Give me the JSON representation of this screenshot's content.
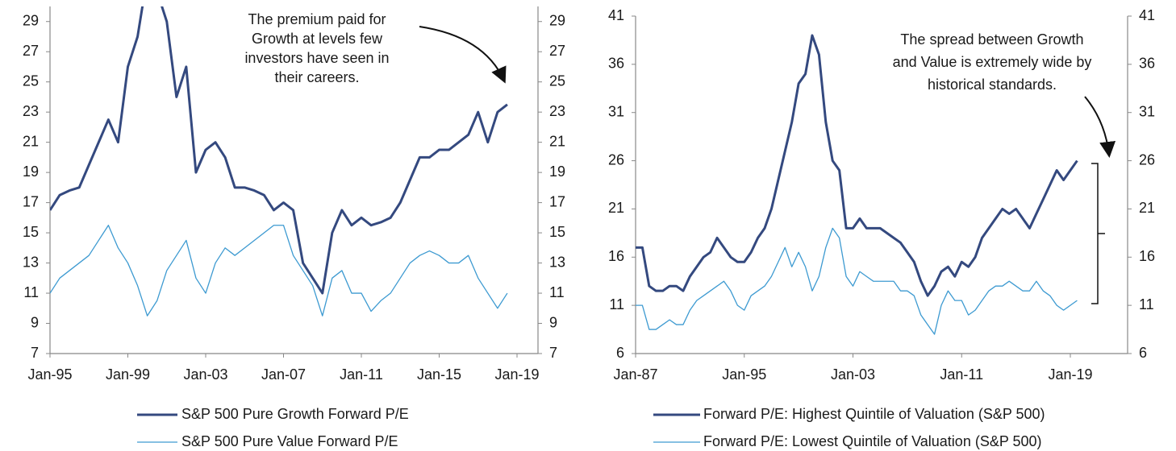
{
  "chart_data": [
    {
      "type": "line",
      "annotation": [
        "The premium paid for",
        "Growth at levels few",
        "investors have seen in",
        "their careers."
      ],
      "x": [
        "Jan-95",
        "Jul-95",
        "Jan-96",
        "Jul-96",
        "Jan-97",
        "Jul-97",
        "Jan-98",
        "Jul-98",
        "Jan-99",
        "Jul-99",
        "Jan-00",
        "Jul-00",
        "Jan-01",
        "Jul-01",
        "Jan-02",
        "Jul-02",
        "Jan-03",
        "Jul-03",
        "Jan-04",
        "Jul-04",
        "Jan-05",
        "Jul-05",
        "Jan-06",
        "Jul-06",
        "Jan-07",
        "Jul-07",
        "Jan-08",
        "Jul-08",
        "Jan-09",
        "Jul-09",
        "Jan-10",
        "Jul-10",
        "Jan-11",
        "Jul-11",
        "Jan-12",
        "Jul-12",
        "Jan-13",
        "Jul-13",
        "Jan-14",
        "Jul-14",
        "Jan-15",
        "Jul-15",
        "Jan-16",
        "Jul-16",
        "Jan-17",
        "Jul-17",
        "Jan-18",
        "Jul-18"
      ],
      "series": [
        {
          "name": "S&P 500 Pure Growth Forward P/E",
          "color": "#34497f",
          "width": 3,
          "values": [
            16.5,
            17.5,
            17.8,
            18,
            19.5,
            21,
            22.5,
            21,
            26,
            28,
            32,
            31,
            29,
            24,
            26,
            19,
            20.5,
            21,
            20,
            18,
            18,
            17.8,
            17.5,
            16.5,
            17,
            16.5,
            13,
            12,
            11,
            15,
            16.5,
            15.5,
            16,
            15.5,
            15.7,
            16,
            17,
            18.5,
            20,
            20,
            20.5,
            20.5,
            21,
            21.5,
            23,
            21,
            23,
            23.5
          ]
        },
        {
          "name": "S&P 500 Pure Value Forward P/E",
          "color": "#3d9ad1",
          "width": 1.3,
          "values": [
            11,
            12,
            12.5,
            13,
            13.5,
            14.5,
            15.5,
            14,
            13,
            11.5,
            9.5,
            10.5,
            12.5,
            13.5,
            14.5,
            12,
            11,
            13,
            14,
            13.5,
            14,
            14.5,
            15,
            15.5,
            15.5,
            13.5,
            12.5,
            11.5,
            9.5,
            12,
            12.5,
            11,
            11,
            9.8,
            10.5,
            11,
            12,
            13,
            13.5,
            13.8,
            13.5,
            13,
            13,
            13.5,
            12,
            11,
            10,
            11
          ]
        }
      ],
      "xlim": [
        "Jan-95",
        "Jan-19"
      ],
      "xticks": [
        "Jan-95",
        "Jan-99",
        "Jan-03",
        "Jan-07",
        "Jan-11",
        "Jan-15",
        "Jan-19"
      ],
      "ylim": [
        7,
        30
      ],
      "yticks": [
        7,
        9,
        11,
        13,
        15,
        17,
        19,
        21,
        23,
        25,
        27,
        29
      ]
    },
    {
      "type": "line",
      "annotation": [
        "The spread between Growth",
        "and Value is extremely wide by",
        "historical standards."
      ],
      "x": [
        "Jan-87",
        "Jul-87",
        "Jan-88",
        "Jul-88",
        "Jan-89",
        "Jul-89",
        "Jan-90",
        "Jul-90",
        "Jan-91",
        "Jul-91",
        "Jan-92",
        "Jul-92",
        "Jan-93",
        "Jul-93",
        "Jan-94",
        "Jul-94",
        "Jan-95",
        "Jul-95",
        "Jan-96",
        "Jul-96",
        "Jan-97",
        "Jul-97",
        "Jan-98",
        "Jul-98",
        "Jan-99",
        "Jul-99",
        "Jan-00",
        "Jul-00",
        "Jan-01",
        "Jul-01",
        "Jan-02",
        "Jul-02",
        "Jan-03",
        "Jul-03",
        "Jan-04",
        "Jul-04",
        "Jan-05",
        "Jul-05",
        "Jan-06",
        "Jul-06",
        "Jan-07",
        "Jul-07",
        "Jan-08",
        "Jul-08",
        "Jan-09",
        "Jul-09",
        "Jan-10",
        "Jul-10",
        "Jan-11",
        "Jul-11",
        "Jan-12",
        "Jul-12",
        "Jan-13",
        "Jul-13",
        "Jan-14",
        "Jul-14",
        "Jan-15",
        "Jul-15",
        "Jan-16",
        "Jul-16",
        "Jan-17",
        "Jul-17",
        "Jan-18",
        "Jul-18",
        "Jan-19",
        "Jul-19"
      ],
      "series": [
        {
          "name": "Forward P/E: Highest Quintile of Valuation (S&P 500)",
          "color": "#34497f",
          "width": 3,
          "values": [
            17,
            17,
            13,
            12.5,
            12.5,
            13,
            13,
            12.5,
            14,
            15,
            16,
            16.5,
            18,
            17,
            16,
            15.5,
            15.5,
            16.5,
            18,
            19,
            21,
            24,
            27,
            30,
            34,
            35,
            39,
            37,
            30,
            26,
            25,
            19,
            19,
            20,
            19,
            19,
            19,
            18.5,
            18,
            17.5,
            16.5,
            15.5,
            13.5,
            12,
            13,
            14.5,
            15,
            14,
            15.5,
            15,
            16,
            18,
            19,
            20,
            21,
            20.5,
            21,
            20,
            19,
            20.5,
            22,
            23.5,
            25,
            24,
            25,
            26
          ]
        },
        {
          "name": "Forward P/E: Lowest Quintile of Valuation (S&P 500)",
          "color": "#3d9ad1",
          "width": 1.3,
          "values": [
            11,
            11,
            8.5,
            8.5,
            9,
            9.5,
            9,
            9,
            10.5,
            11.5,
            12,
            12.5,
            13,
            13.5,
            12.5,
            11,
            10.5,
            12,
            12.5,
            13,
            14,
            15.5,
            17,
            15,
            16.5,
            15,
            12.5,
            14,
            17,
            19,
            18,
            14,
            13,
            14.5,
            14,
            13.5,
            13.5,
            13.5,
            13.5,
            12.5,
            12.5,
            12,
            10,
            9,
            8,
            11,
            12.5,
            11.5,
            11.5,
            10,
            10.5,
            11.5,
            12.5,
            13,
            13,
            13.5,
            13,
            12.5,
            12.5,
            13.5,
            12.5,
            12,
            11,
            10.5,
            11,
            11.5
          ]
        }
      ],
      "xlim": [
        "Jan-87",
        "Jan-19"
      ],
      "xticks": [
        "Jan-87",
        "Jan-95",
        "Jan-03",
        "Jan-11",
        "Jan-19"
      ],
      "ylim": [
        6,
        41
      ],
      "yticks": [
        6,
        11,
        16,
        21,
        26,
        31,
        36,
        41
      ]
    }
  ]
}
